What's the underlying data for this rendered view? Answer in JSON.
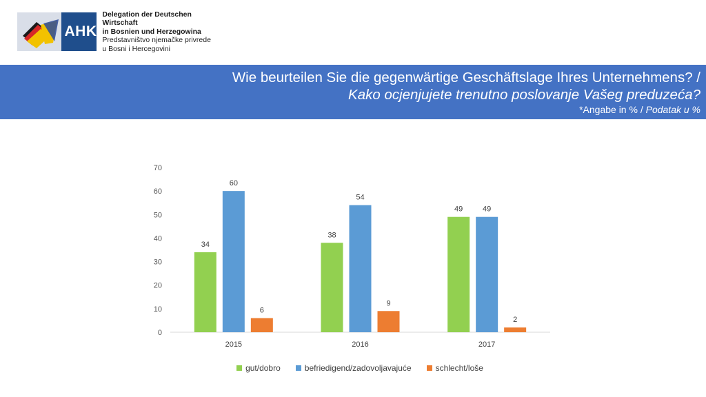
{
  "logo": {
    "mark_text": "AHK",
    "lines": [
      "Delegation der Deutschen Wirtschaft",
      "in Bosnien und Herzegowina",
      "Predstavništvo njemačke privrede",
      "u Bosni i Hercegovini"
    ]
  },
  "banner": {
    "line1": "Wie beurteilen Sie die gegenwärtige Geschäftslage Ihres Unternehmens? /",
    "line2": "Kako ocjenjujete trenutno poslovanje Vašeg preduzeća?",
    "line3_a": "*Angabe in % / ",
    "line3_b": "Podatak u %"
  },
  "chart_data": {
    "type": "bar",
    "categories": [
      "2015",
      "2016",
      "2017"
    ],
    "series": [
      {
        "name": "gut/dobro",
        "values": [
          34,
          38,
          49
        ],
        "color": "#92d050"
      },
      {
        "name": "befriedigend/zadovoljavajuće",
        "values": [
          60,
          54,
          49
        ],
        "color": "#5b9bd5"
      },
      {
        "name": "schlecht/loše",
        "values": [
          6,
          9,
          2
        ],
        "color": "#ed7d31"
      }
    ],
    "ylim": [
      0,
      70
    ],
    "yticks": [
      0,
      10,
      20,
      30,
      40,
      50,
      60,
      70
    ],
    "grid": false,
    "legend": "bottom",
    "data_labels": true
  }
}
